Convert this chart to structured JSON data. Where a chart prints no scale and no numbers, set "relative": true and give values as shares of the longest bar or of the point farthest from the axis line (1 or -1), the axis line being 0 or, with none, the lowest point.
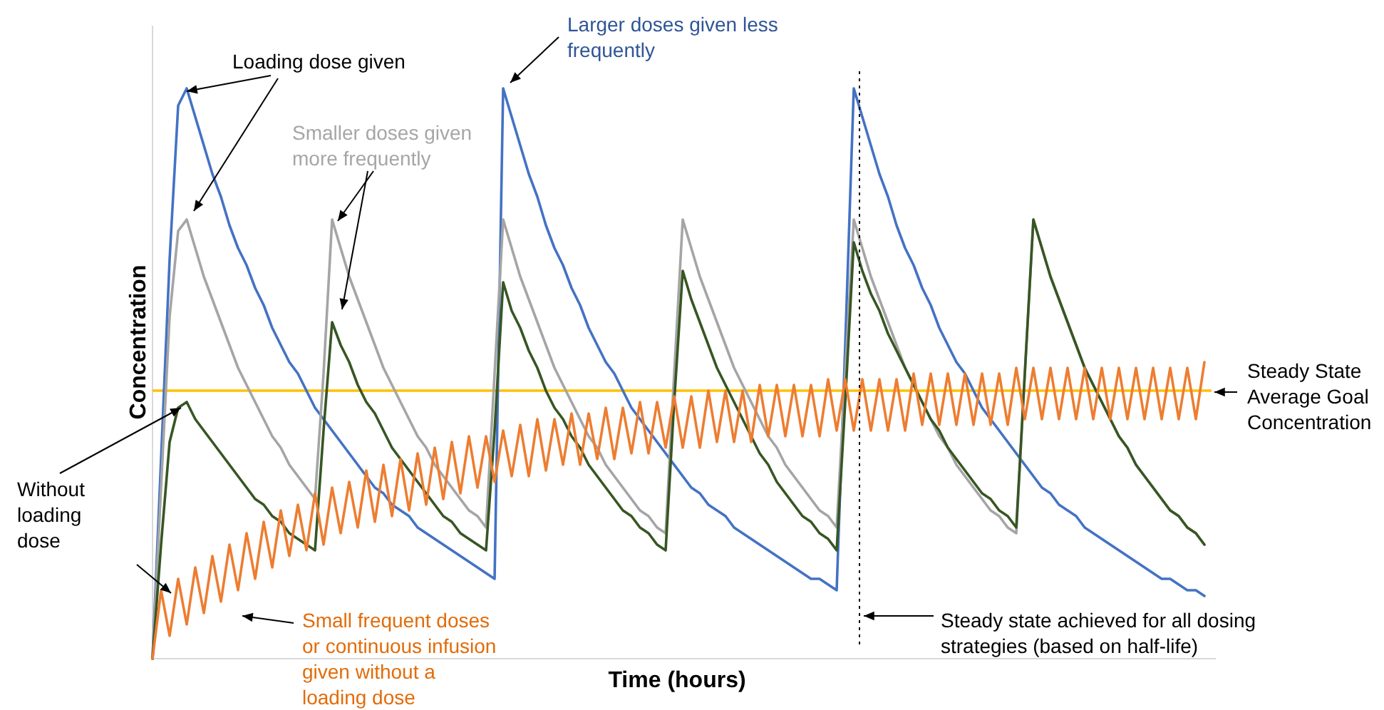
{
  "chart_data": {
    "type": "line",
    "relative": true,
    "xlabel": "Time (hours)",
    "ylabel": "Concentration",
    "categories": [
      null,
      null,
      null,
      null,
      null,
      null,
      null,
      null,
      null,
      null,
      null,
      null,
      null,
      null,
      null,
      null,
      null,
      null,
      null,
      null,
      null,
      null,
      null,
      null,
      null,
      null,
      null,
      null,
      null,
      null,
      null,
      null,
      null,
      null,
      null,
      null,
      null,
      null,
      null,
      null,
      null,
      null,
      null,
      null,
      null,
      null,
      null,
      null,
      null,
      null,
      null,
      null,
      null,
      null,
      null,
      null,
      null,
      null,
      null,
      null,
      null,
      null,
      null,
      null,
      null,
      null,
      null,
      null,
      null,
      null,
      null,
      null,
      null,
      null,
      null,
      null,
      null,
      null,
      null,
      null,
      null,
      null,
      null,
      null,
      null,
      null,
      null,
      null,
      null,
      null,
      null,
      null,
      null,
      null,
      null,
      null,
      null,
      null,
      null,
      null,
      null,
      null,
      null,
      null,
      null,
      null,
      null,
      null,
      null,
      null,
      null,
      null,
      null,
      null,
      null,
      null,
      null,
      null,
      null,
      null,
      null,
      null,
      null,
      null
    ],
    "series": [
      {
        "color": "#4472c4",
        "values": [
          0,
          0.35,
          0.7,
          0.97,
          1.0,
          0.95,
          0.9,
          0.85,
          0.81,
          0.76,
          0.72,
          0.69,
          0.65,
          0.62,
          0.58,
          0.55,
          0.52,
          0.5,
          0.47,
          0.44,
          0.42,
          0.4,
          0.38,
          0.36,
          0.34,
          0.32,
          0.3,
          0.29,
          0.27,
          0.26,
          0.25,
          0.23,
          0.22,
          0.21,
          0.2,
          0.19,
          0.18,
          0.17,
          0.16,
          0.15,
          0.14,
          1.0,
          0.95,
          0.9,
          0.85,
          0.81,
          0.76,
          0.72,
          0.69,
          0.65,
          0.62,
          0.58,
          0.55,
          0.52,
          0.5,
          0.47,
          0.44,
          0.42,
          0.4,
          0.38,
          0.36,
          0.34,
          0.32,
          0.3,
          0.29,
          0.27,
          0.26,
          0.25,
          0.23,
          0.22,
          0.21,
          0.2,
          0.19,
          0.18,
          0.17,
          0.16,
          0.15,
          0.14,
          0.14,
          0.13,
          0.12,
          0.55,
          1.0,
          0.95,
          0.9,
          0.85,
          0.81,
          0.76,
          0.72,
          0.69,
          0.65,
          0.62,
          0.58,
          0.55,
          0.52,
          0.5,
          0.47,
          0.44,
          0.42,
          0.4,
          0.38,
          0.36,
          0.34,
          0.32,
          0.3,
          0.29,
          0.27,
          0.26,
          0.25,
          0.23,
          0.22,
          0.21,
          0.2,
          0.19,
          0.18,
          0.17,
          0.16,
          0.15,
          0.14,
          0.14,
          0.13,
          0.12,
          0.12,
          0.11
        ]
      },
      {
        "color": "#a5a5a5",
        "values": [
          0,
          0.3,
          0.6,
          0.75,
          0.77,
          0.72,
          0.67,
          0.63,
          0.59,
          0.55,
          0.51,
          0.48,
          0.45,
          0.42,
          0.39,
          0.37,
          0.34,
          0.32,
          0.3,
          0.28,
          0.5,
          0.77,
          0.72,
          0.67,
          0.63,
          0.59,
          0.55,
          0.51,
          0.48,
          0.45,
          0.42,
          0.39,
          0.37,
          0.34,
          0.32,
          0.3,
          0.28,
          0.26,
          0.25,
          0.23,
          0.5,
          0.77,
          0.72,
          0.67,
          0.63,
          0.59,
          0.55,
          0.51,
          0.48,
          0.45,
          0.42,
          0.39,
          0.37,
          0.34,
          0.32,
          0.3,
          0.28,
          0.26,
          0.25,
          0.23,
          0.22,
          0.5,
          0.77,
          0.72,
          0.67,
          0.63,
          0.59,
          0.55,
          0.51,
          0.48,
          0.45,
          0.42,
          0.39,
          0.37,
          0.34,
          0.32,
          0.3,
          0.28,
          0.26,
          0.25,
          0.23,
          0.5,
          0.77,
          0.72,
          0.67,
          0.63,
          0.59,
          0.55,
          0.51,
          0.48,
          0.45,
          0.42,
          0.39,
          0.37,
          0.34,
          0.32,
          0.3,
          0.28,
          0.26,
          0.25,
          0.23,
          0.22,
          0.5,
          0.77,
          0.72,
          0.67,
          0.63,
          0.59,
          0.55,
          0.51,
          0.48,
          0.45,
          0.42,
          0.39,
          0.37,
          0.34,
          0.32,
          0.3,
          0.28,
          0.26,
          0.25,
          0.23,
          0.22,
          0.2
        ]
      },
      {
        "color": "#375623",
        "values": [
          0,
          0.2,
          0.38,
          0.44,
          0.45,
          0.42,
          0.4,
          0.38,
          0.36,
          0.34,
          0.32,
          0.3,
          0.28,
          0.27,
          0.25,
          0.24,
          0.22,
          0.21,
          0.2,
          0.19,
          0.4,
          0.59,
          0.55,
          0.52,
          0.48,
          0.45,
          0.43,
          0.4,
          0.37,
          0.35,
          0.33,
          0.31,
          0.29,
          0.27,
          0.25,
          0.24,
          0.22,
          0.21,
          0.2,
          0.19,
          0.4,
          0.66,
          0.61,
          0.58,
          0.54,
          0.51,
          0.47,
          0.44,
          0.42,
          0.39,
          0.37,
          0.34,
          0.32,
          0.3,
          0.28,
          0.26,
          0.25,
          0.23,
          0.22,
          0.2,
          0.19,
          0.45,
          0.68,
          0.63,
          0.59,
          0.55,
          0.51,
          0.48,
          0.45,
          0.42,
          0.39,
          0.36,
          0.34,
          0.31,
          0.29,
          0.27,
          0.25,
          0.24,
          0.22,
          0.21,
          0.19,
          0.45,
          0.73,
          0.68,
          0.64,
          0.61,
          0.57,
          0.54,
          0.51,
          0.48,
          0.45,
          0.42,
          0.4,
          0.37,
          0.35,
          0.33,
          0.31,
          0.29,
          0.28,
          0.26,
          0.25,
          0.23,
          0.5,
          0.77,
          0.72,
          0.67,
          0.63,
          0.59,
          0.55,
          0.51,
          0.48,
          0.45,
          0.42,
          0.39,
          0.37,
          0.34,
          0.32,
          0.3,
          0.28,
          0.26,
          0.25,
          0.23,
          0.22,
          0.2
        ]
      },
      {
        "color": "#ed7d31",
        "values": [
          0,
          0.12,
          0.04,
          0.14,
          0.06,
          0.16,
          0.08,
          0.18,
          0.1,
          0.2,
          0.12,
          0.22,
          0.14,
          0.24,
          0.16,
          0.26,
          0.18,
          0.27,
          0.19,
          0.29,
          0.2,
          0.3,
          0.22,
          0.31,
          0.23,
          0.33,
          0.24,
          0.34,
          0.25,
          0.35,
          0.26,
          0.36,
          0.27,
          0.37,
          0.28,
          0.38,
          0.29,
          0.39,
          0.3,
          0.39,
          0.31,
          0.4,
          0.32,
          0.41,
          0.32,
          0.42,
          0.33,
          0.42,
          0.34,
          0.43,
          0.34,
          0.43,
          0.35,
          0.44,
          0.35,
          0.44,
          0.36,
          0.45,
          0.36,
          0.45,
          0.37,
          0.46,
          0.37,
          0.46,
          0.37,
          0.47,
          0.38,
          0.47,
          0.38,
          0.47,
          0.38,
          0.48,
          0.39,
          0.48,
          0.39,
          0.48,
          0.39,
          0.48,
          0.39,
          0.49,
          0.4,
          0.49,
          0.4,
          0.49,
          0.4,
          0.49,
          0.4,
          0.49,
          0.4,
          0.5,
          0.41,
          0.5,
          0.41,
          0.5,
          0.41,
          0.5,
          0.41,
          0.5,
          0.41,
          0.5,
          0.41,
          0.51,
          0.42,
          0.51,
          0.42,
          0.51,
          0.42,
          0.51,
          0.42,
          0.51,
          0.42,
          0.51,
          0.42,
          0.51,
          0.42,
          0.51,
          0.42,
          0.51,
          0.42,
          0.51,
          0.42,
          0.51,
          0.42,
          0.52
        ]
      }
    ],
    "ref_lines": [
      {
        "axis": "y",
        "value": 0.47,
        "label": "Steady State\nAverage Goal\nConcentration",
        "color": "#ffc000",
        "line_style": "solid"
      }
    ],
    "annotations": [
      "Steady state achieved for all dosing\nstrategies (based on half-life)",
      "Loading dose given",
      "Larger doses given less\nfrequently",
      "Smaller doses given\nmore frequently",
      "Without\nloading\ndose",
      "Small frequent doses\nor continuous infusion\ngiven without a\nloading dose"
    ]
  }
}
